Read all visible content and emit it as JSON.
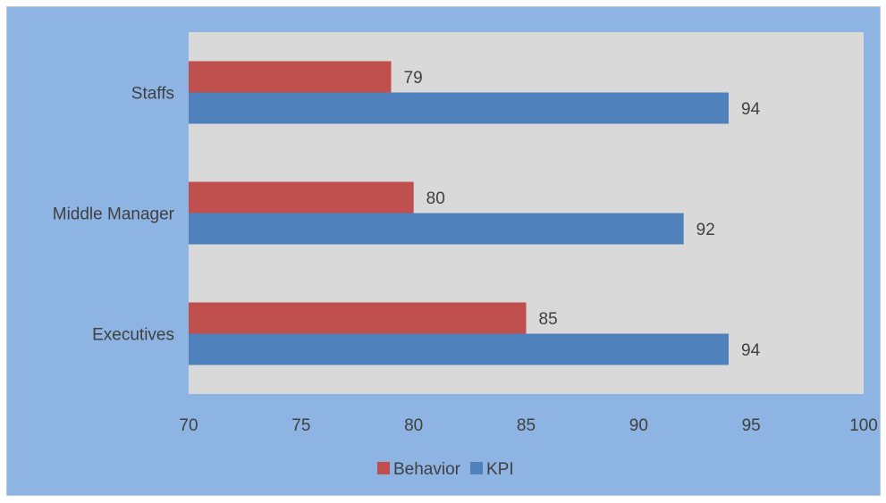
{
  "colors": {
    "background": "#8DB4E2",
    "plot_area": "#D9D9D9",
    "behavior": "#C0504D",
    "kpi": "#4F81BD",
    "text": "#404040"
  },
  "chart_data": {
    "type": "bar",
    "orientation": "horizontal",
    "categories": [
      "Executives",
      "Middle Manager",
      "Staffs"
    ],
    "series": [
      {
        "name": "Behavior",
        "values": [
          85,
          80,
          79
        ],
        "color": "#C0504D"
      },
      {
        "name": "KPI",
        "values": [
          94,
          92,
          94
        ],
        "color": "#4F81BD"
      }
    ],
    "xlim": [
      70,
      100
    ],
    "x_ticks": [
      70,
      75,
      80,
      85,
      90,
      95,
      100
    ],
    "title": "",
    "xlabel": "",
    "ylabel": "",
    "legend_position": "bottom",
    "grid": false,
    "data_labels": true
  }
}
